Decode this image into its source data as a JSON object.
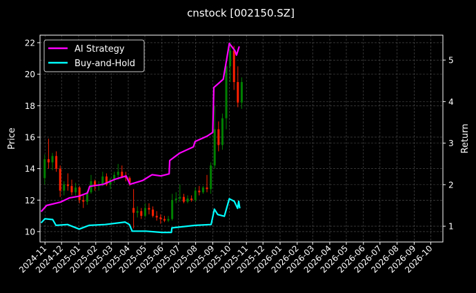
{
  "chart_data": {
    "type": "line",
    "title": "cnstock [002150.SZ]",
    "ylabel": "Price",
    "ylabel_right": "Return",
    "xlim": [
      "2024-10-23",
      "2026-10-23"
    ],
    "ylim": [
      9.34,
      22.48
    ],
    "ylim_right": [
      0.62,
      5.6
    ],
    "grid": true,
    "legend": "top-left",
    "background": "#000000",
    "colors": {
      "up": "#008000",
      "down": "#ff2000",
      "strategy": "#ff00ff",
      "buy_hold": "#00ffff",
      "grid": "#555555"
    },
    "x_ticks": [
      "2024-11",
      "2024-12",
      "2025-01",
      "2025-02",
      "2025-03",
      "2025-04",
      "2025-05",
      "2025-06",
      "2025-07",
      "2025-08",
      "2025-09",
      "2025-10",
      "2025-11",
      "2025-12",
      "2026-01",
      "2026-02",
      "2026-03",
      "2026-04",
      "2026-05",
      "2026-06",
      "2026-07",
      "2026-08",
      "2026-09",
      "2026-10"
    ],
    "y_ticks": [
      10,
      12,
      14,
      16,
      18,
      20,
      22
    ],
    "y_ticks_right": [
      1,
      2,
      3,
      4,
      5
    ],
    "candles": [
      [
        "2024-10-28",
        13.4,
        14.9,
        13.0,
        14.6
      ],
      [
        "2024-11-04",
        14.6,
        15.9,
        14.0,
        14.4
      ],
      [
        "2024-11-11",
        14.4,
        15.0,
        13.9,
        14.8
      ],
      [
        "2024-11-18",
        14.8,
        15.1,
        13.8,
        14.0
      ],
      [
        "2024-11-25",
        14.0,
        14.2,
        12.2,
        12.6
      ],
      [
        "2024-12-02",
        12.6,
        13.2,
        12.3,
        13.0
      ],
      [
        "2024-12-09",
        13.0,
        13.7,
        12.6,
        12.9
      ],
      [
        "2024-12-16",
        12.9,
        13.3,
        12.3,
        12.5
      ],
      [
        "2024-12-23",
        12.5,
        13.1,
        12.3,
        12.8
      ],
      [
        "2024-12-30",
        12.8,
        12.9,
        11.8,
        12.0
      ],
      [
        "2025-01-06",
        12.0,
        12.4,
        11.5,
        11.9
      ],
      [
        "2025-01-13",
        11.9,
        12.6,
        11.7,
        12.5
      ],
      [
        "2025-01-20",
        12.5,
        13.6,
        12.4,
        13.2
      ],
      [
        "2025-01-27",
        13.2,
        13.3,
        12.6,
        12.9
      ],
      [
        "2025-02-03",
        12.9,
        13.2,
        12.6,
        13.0
      ],
      [
        "2025-02-10",
        13.0,
        13.8,
        12.9,
        13.5
      ],
      [
        "2025-02-17",
        13.5,
        13.7,
        12.9,
        13.0
      ],
      [
        "2025-02-24",
        13.0,
        13.4,
        12.7,
        13.3
      ],
      [
        "2025-03-03",
        13.3,
        13.8,
        13.1,
        13.6
      ],
      [
        "2025-03-10",
        13.6,
        14.3,
        13.3,
        13.8
      ],
      [
        "2025-03-17",
        13.8,
        14.2,
        13.4,
        13.5
      ],
      [
        "2025-03-24",
        13.5,
        13.8,
        13.2,
        13.4
      ],
      [
        "2025-03-31",
        13.4,
        13.5,
        12.9,
        13.1
      ],
      [
        "2025-04-07",
        11.5,
        12.7,
        10.2,
        11.2
      ],
      [
        "2025-04-14",
        11.2,
        11.6,
        10.9,
        11.3
      ],
      [
        "2025-04-21",
        11.3,
        11.5,
        10.8,
        11.0
      ],
      [
        "2025-04-28",
        11.0,
        11.8,
        10.9,
        11.5
      ],
      [
        "2025-05-05",
        11.5,
        11.8,
        11.1,
        11.4
      ],
      [
        "2025-05-12",
        11.4,
        11.6,
        10.9,
        11.0
      ],
      [
        "2025-05-19",
        11.0,
        11.3,
        10.7,
        10.9
      ],
      [
        "2025-05-26",
        10.9,
        11.1,
        10.5,
        10.8
      ],
      [
        "2025-06-02",
        10.8,
        11.0,
        10.6,
        10.7
      ],
      [
        "2025-06-09",
        10.7,
        11.0,
        10.6,
        10.8
      ],
      [
        "2025-06-16",
        10.8,
        12.4,
        10.7,
        12.0
      ],
      [
        "2025-06-23",
        12.0,
        12.5,
        11.8,
        12.1
      ],
      [
        "2025-06-30",
        12.1,
        13.0,
        11.9,
        12.2
      ],
      [
        "2025-07-07",
        12.2,
        12.4,
        11.8,
        11.9
      ],
      [
        "2025-07-14",
        11.9,
        12.3,
        11.8,
        12.1
      ],
      [
        "2025-07-21",
        12.1,
        12.3,
        11.9,
        12.0
      ],
      [
        "2025-07-28",
        12.0,
        12.8,
        11.9,
        12.6
      ],
      [
        "2025-08-04",
        12.6,
        12.9,
        12.3,
        12.5
      ],
      [
        "2025-08-11",
        12.5,
        12.9,
        12.4,
        12.8
      ],
      [
        "2025-08-18",
        12.8,
        13.6,
        12.5,
        12.7
      ],
      [
        "2025-08-25",
        12.7,
        14.4,
        12.4,
        14.2
      ],
      [
        "2025-09-01",
        14.2,
        18.0,
        14.0,
        16.5
      ],
      [
        "2025-09-08",
        16.5,
        17.0,
        15.1,
        15.5
      ],
      [
        "2025-09-15",
        15.5,
        17.5,
        15.2,
        17.2
      ],
      [
        "2025-09-22",
        17.2,
        20.8,
        16.5,
        20.5
      ],
      [
        "2025-09-29",
        20.5,
        22.0,
        19.5,
        21.5
      ],
      [
        "2025-10-06",
        21.5,
        21.8,
        19.0,
        19.5
      ],
      [
        "2025-10-13",
        19.5,
        20.5,
        17.9,
        18.2
      ],
      [
        "2025-10-20",
        18.2,
        19.8,
        17.8,
        19.5
      ]
    ],
    "series": [
      {
        "name": "AI Strategy",
        "axis": "right",
        "x": [
          "2024-10-25",
          "2024-11-04",
          "2024-11-29",
          "2024-12-15",
          "2025-01-01",
          "2025-01-17",
          "2025-01-21",
          "2025-02-15",
          "2025-03-08",
          "2025-03-28",
          "2025-04-04",
          "2025-04-27",
          "2025-05-14",
          "2025-05-30",
          "2025-06-14",
          "2025-06-15",
          "2025-07-03",
          "2025-07-28",
          "2025-07-31",
          "2025-08-22",
          "2025-09-01",
          "2025-09-03",
          "2025-09-20",
          "2025-09-26",
          "2025-10-01",
          "2025-10-11",
          "2025-10-14",
          "2025-10-19"
        ],
        "values": [
          1.35,
          1.5,
          1.58,
          1.68,
          1.72,
          1.8,
          1.96,
          2.01,
          2.13,
          2.21,
          2.01,
          2.1,
          2.24,
          2.21,
          2.26,
          2.58,
          2.76,
          2.91,
          3.04,
          3.17,
          3.26,
          4.34,
          4.54,
          5.0,
          5.4,
          5.23,
          5.12,
          5.33
        ]
      },
      {
        "name": "Buy-and-Hold",
        "axis": "right",
        "x": [
          "2024-10-25",
          "2024-11-01",
          "2024-11-15",
          "2024-11-21",
          "2024-12-12",
          "2025-01-02",
          "2025-01-20",
          "2025-02-18",
          "2025-03-26",
          "2025-04-03",
          "2025-04-08",
          "2025-05-03",
          "2025-06-01",
          "2025-06-18",
          "2025-06-19",
          "2025-07-31",
          "2025-08-29",
          "2025-09-04",
          "2025-09-10",
          "2025-09-22",
          "2025-10-01",
          "2025-10-10",
          "2025-10-16",
          "2025-10-18",
          "2025-10-20"
        ],
        "values": [
          1.08,
          1.18,
          1.16,
          1.02,
          1.04,
          0.93,
          1.02,
          1.04,
          1.1,
          1.04,
          0.88,
          0.88,
          0.85,
          0.85,
          0.96,
          1.02,
          1.04,
          1.41,
          1.28,
          1.24,
          1.66,
          1.6,
          1.43,
          1.6,
          1.43
        ]
      }
    ]
  }
}
